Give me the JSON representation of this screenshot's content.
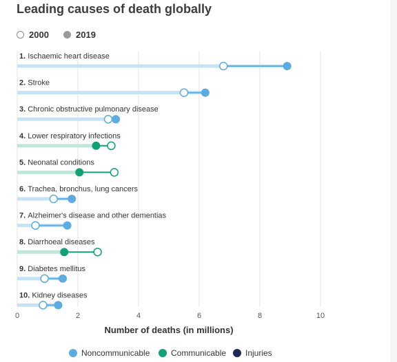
{
  "title": "Leading causes of death globally",
  "legend_years": [
    {
      "label": "2000",
      "style": "open"
    },
    {
      "label": "2019",
      "style": "filled"
    }
  ],
  "colors": {
    "Noncommunicable": "#5aace3",
    "Communicable": "#12a176",
    "Injuries": "#1e2a55"
  },
  "category_legend": [
    "Noncommunicable",
    "Communicable",
    "Injuries"
  ],
  "chart_data": {
    "type": "dumbbell",
    "title": "Leading causes of death globally",
    "xlabel": "Number of deaths (in millions)",
    "xlim": [
      0,
      10
    ],
    "xticks": [
      0,
      2,
      4,
      6,
      8,
      10
    ],
    "grid": true,
    "series_names": [
      "2000",
      "2019"
    ],
    "rows": [
      {
        "label": "1. Ischaemic heart disease",
        "category": "Noncommunicable",
        "y2000": 6.8,
        "y2019": 8.9
      },
      {
        "label": "2. Stroke",
        "category": "Noncommunicable",
        "y2000": 5.5,
        "y2019": 6.2
      },
      {
        "label": "3. Chronic obstructive pulmonary disease",
        "category": "Noncommunicable",
        "y2000": 3.0,
        "y2019": 3.25
      },
      {
        "label": "4. Lower respiratory infections",
        "category": "Communicable",
        "y2000": 3.1,
        "y2019": 2.6
      },
      {
        "label": "5. Neonatal conditions",
        "category": "Communicable",
        "y2000": 3.2,
        "y2019": 2.05
      },
      {
        "label": "6. Trachea, bronchus, lung cancers",
        "category": "Noncommunicable",
        "y2000": 1.2,
        "y2019": 1.8
      },
      {
        "label": "7. Alzheimer's disease and other dementias",
        "category": "Noncommunicable",
        "y2000": 0.6,
        "y2019": 1.65
      },
      {
        "label": "8. Diarrhoeal diseases",
        "category": "Communicable",
        "y2000": 2.65,
        "y2019": 1.55
      },
      {
        "label": "9. Diabetes mellitus",
        "category": "Noncommunicable",
        "y2000": 0.9,
        "y2019": 1.5
      },
      {
        "label": "10. Kidney diseases",
        "category": "Noncommunicable",
        "y2000": 0.85,
        "y2019": 1.35
      }
    ]
  }
}
